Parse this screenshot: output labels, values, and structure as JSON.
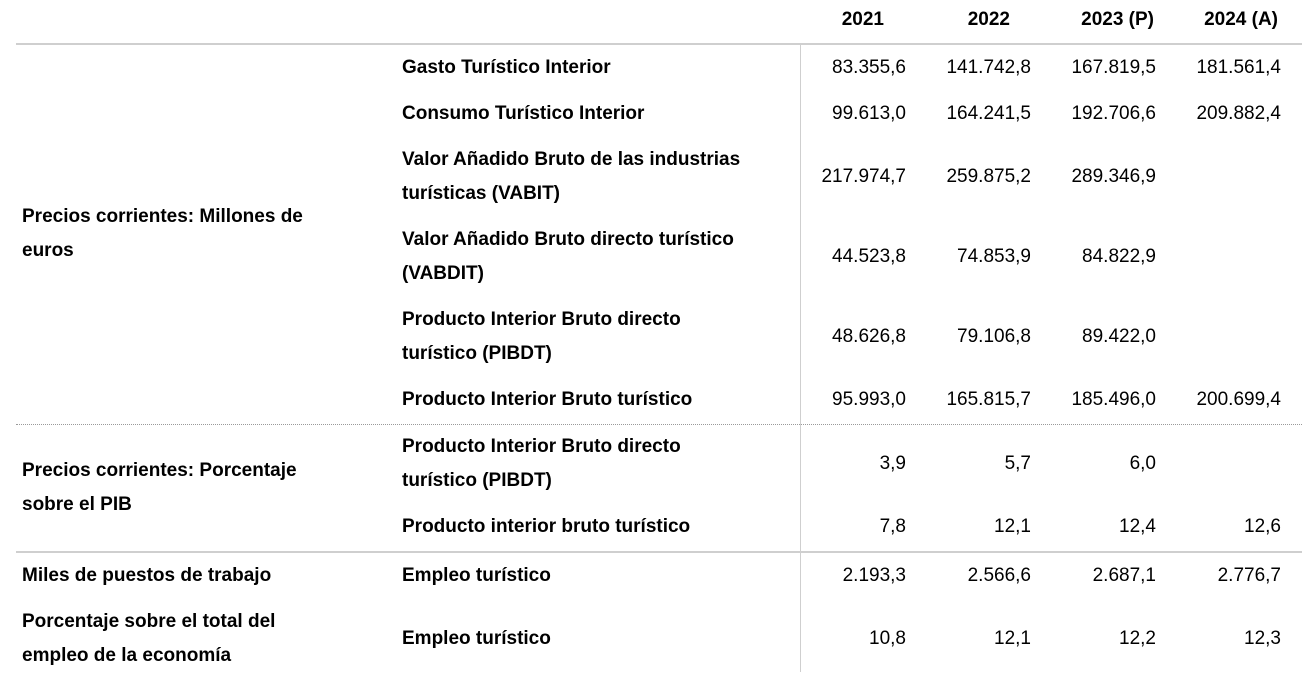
{
  "header": {
    "years": [
      "2021",
      "2022",
      "2023 (P)",
      "2024 (A)"
    ]
  },
  "groups": [
    {
      "label_lines": [
        "Precios corrientes: Millones de",
        "euros"
      ],
      "rows": [
        {
          "concept_lines": [
            "Gasto Turístico Interior"
          ],
          "values": [
            "83.355,6",
            "141.742,8",
            "167.819,5",
            "181.561,4"
          ]
        },
        {
          "concept_lines": [
            "Consumo Turístico Interior"
          ],
          "values": [
            "99.613,0",
            "164.241,5",
            "192.706,6",
            "209.882,4"
          ]
        },
        {
          "concept_lines": [
            "Valor Añadido Bruto de las industrias",
            "turísticas (VABIT)"
          ],
          "values": [
            "217.974,7",
            "259.875,2",
            "289.346,9",
            ""
          ]
        },
        {
          "concept_lines": [
            "Valor Añadido Bruto directo turístico",
            "(VABDIT)"
          ],
          "values": [
            "44.523,8",
            "74.853,9",
            "84.822,9",
            ""
          ]
        },
        {
          "concept_lines": [
            "Producto Interior Bruto directo",
            "turístico (PIBDT)"
          ],
          "values": [
            "48.626,8",
            "79.106,8",
            "89.422,0",
            ""
          ]
        },
        {
          "concept_lines": [
            "Producto Interior Bruto turístico"
          ],
          "values": [
            "95.993,0",
            "165.815,7",
            "185.496,0",
            "200.699,4"
          ]
        }
      ]
    },
    {
      "label_lines": [
        "Precios corrientes: Porcentaje",
        "sobre el PIB"
      ],
      "rows": [
        {
          "concept_lines": [
            "Producto Interior Bruto directo",
            "turístico (PIBDT)"
          ],
          "values": [
            "3,9",
            "5,7",
            "6,0",
            ""
          ]
        },
        {
          "concept_lines": [
            "Producto interior bruto turístico"
          ],
          "values": [
            "7,8",
            "12,1",
            "12,4",
            "12,6"
          ]
        }
      ]
    },
    {
      "label_lines": [
        "Miles de puestos de trabajo"
      ],
      "rows": [
        {
          "concept_lines": [
            "Empleo turístico"
          ],
          "values": [
            "2.193,3",
            "2.566,6",
            "2.687,1",
            "2.776,7"
          ]
        }
      ]
    },
    {
      "label_lines": [
        "Porcentaje sobre el total del",
        "empleo de la economía"
      ],
      "rows": [
        {
          "concept_lines": [
            "Empleo turístico"
          ],
          "values": [
            "10,8",
            "12,1",
            "12,2",
            "12,3"
          ]
        }
      ]
    }
  ]
}
